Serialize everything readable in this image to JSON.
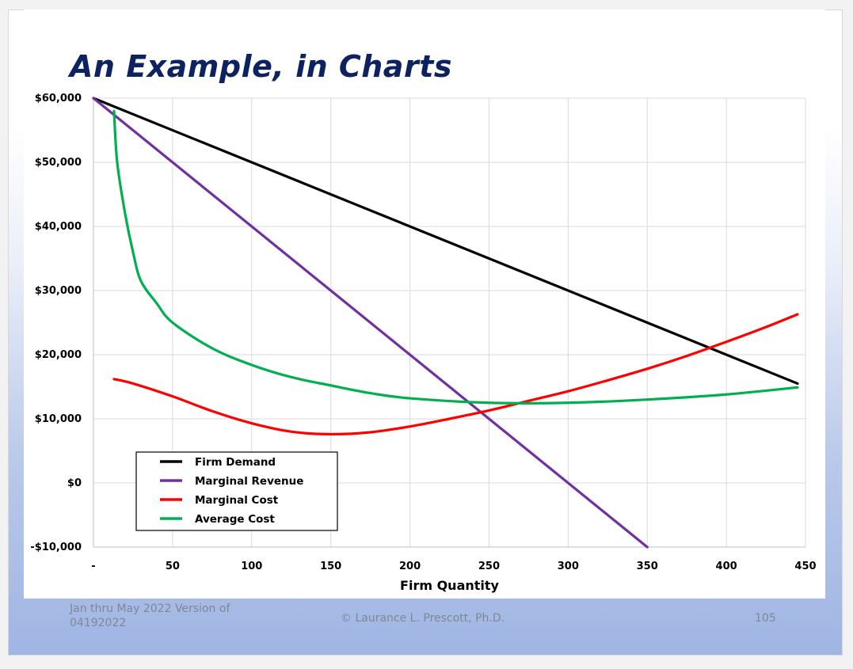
{
  "slide": {
    "title": "An Example, in Charts",
    "footer_left": "Jan thru May 2022  Version of 04192022",
    "footer_center": "© Laurance L. Prescott, Ph.D.",
    "page_number": "105"
  },
  "chart_data": {
    "type": "line",
    "title": "",
    "xlabel": "Firm Quantity",
    "ylabel": "",
    "xlim": [
      0,
      450
    ],
    "ylim": [
      -10000,
      60000
    ],
    "x_ticks": [
      0,
      50,
      100,
      150,
      200,
      250,
      300,
      350,
      400,
      450
    ],
    "x_tick_labels": [
      "-",
      "50",
      "100",
      "150",
      "200",
      "250",
      "300",
      "350",
      "400",
      "450"
    ],
    "y_ticks": [
      -10000,
      0,
      10000,
      20000,
      30000,
      40000,
      50000,
      60000
    ],
    "y_tick_labels": [
      "-$10,000",
      "$0",
      "$10,000",
      "$20,000",
      "$30,000",
      "$40,000",
      "$50,000",
      "$60,000"
    ],
    "grid": true,
    "legend_position": "bottom-left",
    "series": [
      {
        "name": "Firm Demand",
        "color": "#000000",
        "x": [
          0,
          445
        ],
        "y": [
          60000,
          15500
        ]
      },
      {
        "name": "Marginal Revenue",
        "color": "#7030a0",
        "x": [
          0,
          50,
          100,
          150,
          200,
          250,
          300,
          350
        ],
        "y": [
          60000,
          50000,
          40000,
          30000,
          20000,
          10000,
          0,
          -10000
        ]
      },
      {
        "name": "Marginal Cost",
        "color": "#ff0000",
        "x": [
          13,
          25,
          50,
          75,
          100,
          125,
          150,
          175,
          200,
          225,
          250,
          275,
          300,
          325,
          350,
          375,
          400,
          425,
          445
        ],
        "y": [
          16200,
          15500,
          13500,
          11200,
          9300,
          8000,
          7600,
          7900,
          8800,
          10000,
          11300,
          12800,
          14300,
          16000,
          17800,
          19800,
          22000,
          24300,
          26300
        ]
      },
      {
        "name": "Average Cost",
        "color": "#00b050",
        "x": [
          13,
          15,
          20,
          25,
          30,
          40,
          50,
          75,
          100,
          125,
          150,
          175,
          200,
          250,
          300,
          350,
          400,
          445
        ],
        "y": [
          58000,
          50000,
          42000,
          36000,
          31500,
          28000,
          25000,
          21000,
          18400,
          16500,
          15200,
          14000,
          13200,
          12500,
          12500,
          13000,
          13800,
          14900
        ]
      }
    ]
  }
}
